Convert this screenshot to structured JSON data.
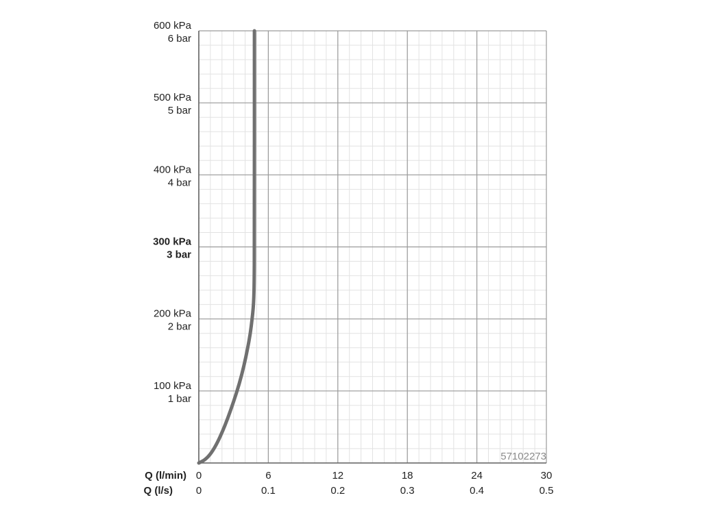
{
  "chart_data": {
    "type": "line",
    "y_ticks": [
      {
        "value": 600,
        "kpa": "600 kPa",
        "bar": "6 bar",
        "bold": false
      },
      {
        "value": 500,
        "kpa": "500 kPa",
        "bar": "5 bar",
        "bold": false
      },
      {
        "value": 400,
        "kpa": "400 kPa",
        "bar": "4 bar",
        "bold": false
      },
      {
        "value": 300,
        "kpa": "300 kPa",
        "bar": "3 bar",
        "bold": true
      },
      {
        "value": 200,
        "kpa": "200 kPa",
        "bar": "2 bar",
        "bold": false
      },
      {
        "value": 100,
        "kpa": "100 kPa",
        "bar": "1 bar",
        "bold": false
      }
    ],
    "x_axis_name_1": "Q (l/min)",
    "x_axis_name_2": "Q (l/s)",
    "x_ticks_lmin": [
      "0",
      "6",
      "12",
      "18",
      "24",
      "30"
    ],
    "x_ticks_ls": [
      "0",
      "0.1",
      "0.2",
      "0.3",
      "0.4",
      "0.5"
    ],
    "xlim": [
      0,
      30
    ],
    "ylim": [
      0,
      600
    ],
    "grid": true,
    "code_label": "57102273",
    "series": [
      {
        "color": "#707070",
        "x": [
          0,
          0.5,
          1.0,
          1.5,
          2.0,
          2.5,
          3.0,
          3.5,
          3.9,
          4.2,
          4.45,
          4.6,
          4.7,
          4.75,
          4.78,
          4.8,
          4.8
        ],
        "y": [
          0,
          4,
          12,
          25,
          42,
          62,
          85,
          110,
          135,
          158,
          180,
          200,
          215,
          230,
          250,
          300,
          600
        ]
      }
    ]
  }
}
